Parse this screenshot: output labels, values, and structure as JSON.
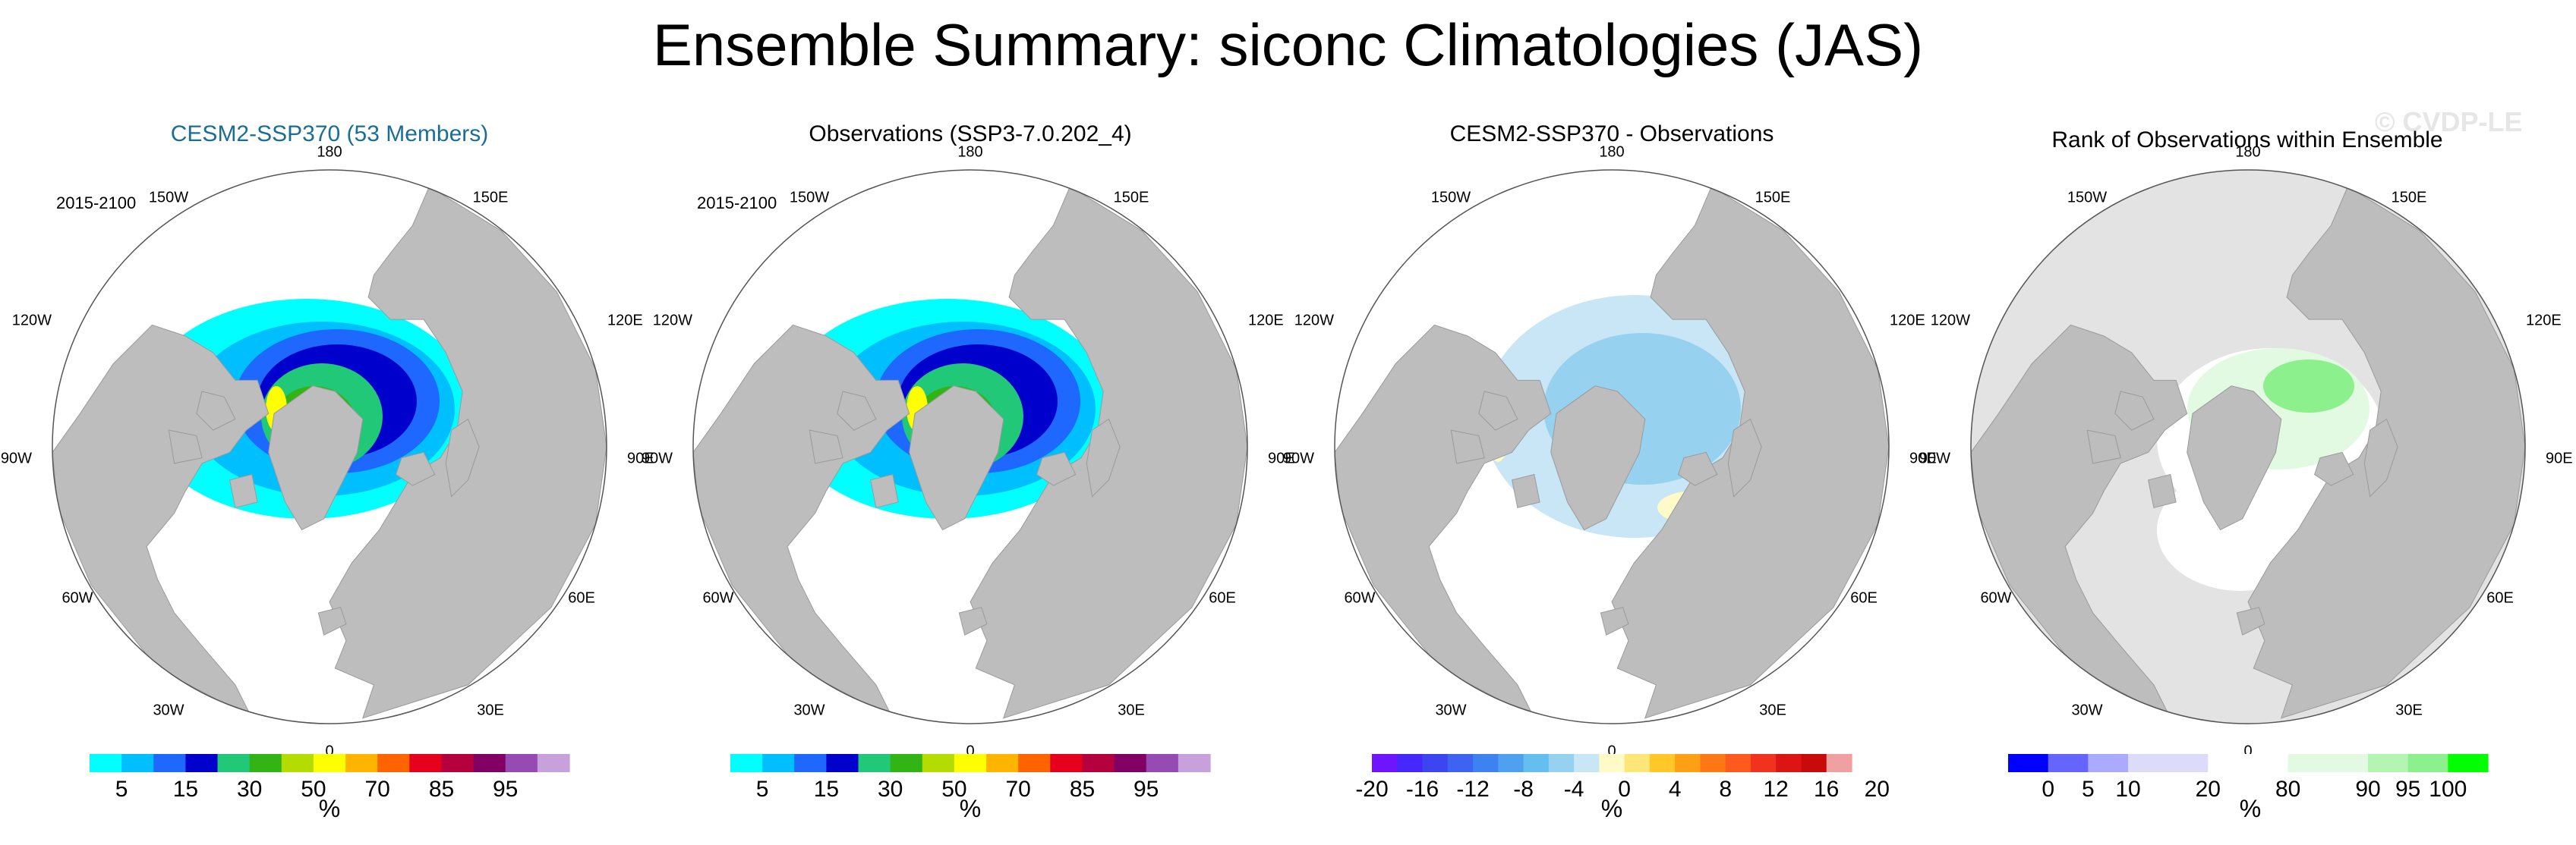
{
  "figure": {
    "title": "Ensemble Summary: siconc Climatologies (JAS)",
    "watermark": "© CVDP-LE"
  },
  "colors": {
    "land": "#bdbdbd",
    "ocean": "#ffffff",
    "rank_background": "#e3e3e3",
    "map_border": "#555555"
  },
  "panels": [
    {
      "title": "CESM2-SSP370 (53 Members)",
      "title_style": "blue",
      "period": "2015-2100",
      "units": "%",
      "lon_labels": [
        "180",
        "150E",
        "120E",
        "90E",
        "60E",
        "30E",
        "0",
        "30W",
        "60W",
        "90W",
        "120W",
        "150W"
      ],
      "colorbar": {
        "colors": [
          "#00ffff",
          "#00bfff",
          "#1e68ff",
          "#0000cd",
          "#20c878",
          "#32b414",
          "#b4dc00",
          "#ffff00",
          "#ffb400",
          "#ff6400",
          "#e6001e",
          "#b4003c",
          "#820064",
          "#964bb4",
          "#c8a0dc"
        ],
        "labels": [
          "5",
          "15",
          "30",
          "50",
          "70",
          "85",
          "95"
        ],
        "label_bounds": [
          1,
          3,
          5,
          7,
          9,
          11,
          13
        ]
      }
    },
    {
      "title": "Observations (SSP3-7.0.202_4)",
      "title_style": "black",
      "period": "2015-2100",
      "units": "%",
      "lon_labels": [
        "180",
        "150E",
        "120E",
        "90E",
        "60E",
        "30E",
        "0",
        "30W",
        "60W",
        "90W",
        "120W",
        "150W"
      ],
      "colorbar": {
        "colors": [
          "#00ffff",
          "#00bfff",
          "#1e68ff",
          "#0000cd",
          "#20c878",
          "#32b414",
          "#b4dc00",
          "#ffff00",
          "#ffb400",
          "#ff6400",
          "#e6001e",
          "#b4003c",
          "#820064",
          "#964bb4",
          "#c8a0dc"
        ],
        "labels": [
          "5",
          "15",
          "30",
          "50",
          "70",
          "85",
          "95"
        ],
        "label_bounds": [
          1,
          3,
          5,
          7,
          9,
          11,
          13
        ]
      }
    },
    {
      "title": "CESM2-SSP370 - Observations",
      "title_style": "black",
      "period": "",
      "units": "%",
      "lon_labels": [
        "180",
        "150E",
        "120E",
        "90E",
        "60E",
        "30E",
        "0",
        "30W",
        "60W",
        "90W",
        "120W",
        "150W"
      ],
      "colorbar": {
        "colors": [
          "#6e14ff",
          "#4628ff",
          "#3c46f0",
          "#3c64f0",
          "#3c82f0",
          "#50a0f0",
          "#64bef0",
          "#96d2f0",
          "#c8e6f5",
          "#fffac8",
          "#ffe678",
          "#ffc828",
          "#ffa014",
          "#ff7814",
          "#ff5a1e",
          "#f0321e",
          "#dc1414",
          "#c80a0a",
          "#f0a0a0"
        ],
        "labels": [
          "-20",
          "-16",
          "-12",
          "-8",
          "-4",
          "0",
          "4",
          "8",
          "12",
          "16",
          "20"
        ],
        "label_bounds": [
          0,
          2,
          4,
          6,
          8,
          10,
          12,
          14,
          16,
          18,
          20
        ]
      }
    },
    {
      "title": "Rank of Observations within Ensemble",
      "title_style": "black",
      "period": "",
      "units": "%",
      "lon_labels": [
        "180",
        "150E",
        "120E",
        "90E",
        "60E",
        "30E",
        "0",
        "30W",
        "60W",
        "90W",
        "120W",
        "150W"
      ],
      "colorbar": {
        "colors": [
          "#0000ff",
          "#6464ff",
          "#aaaaff",
          "#dcdcfa",
          "#dcdcfa",
          "#ffffff",
          "#ffffff",
          "#e1fae1",
          "#e1fae1",
          "#b4f5b4",
          "#8cf08c",
          "#00ff00"
        ],
        "labels": [
          "0",
          "5",
          "10",
          "20",
          "80",
          "90",
          "95",
          "100"
        ],
        "label_bounds": [
          1,
          2,
          3,
          5,
          7,
          9,
          10,
          11
        ]
      }
    }
  ]
}
